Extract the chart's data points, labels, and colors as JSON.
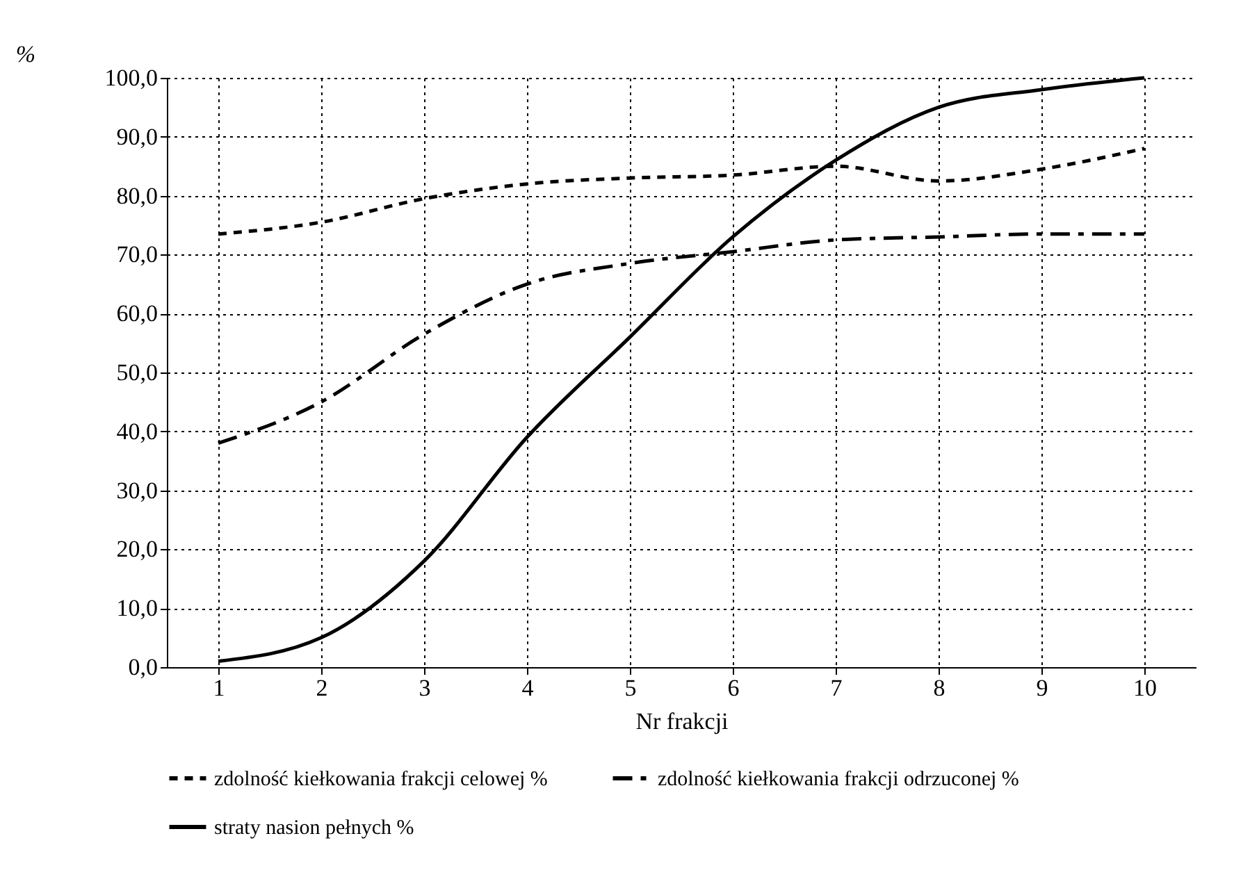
{
  "chart_data": {
    "type": "line",
    "xlabel": "Nr frakcji",
    "ylabel": "%",
    "categories": [
      "1",
      "2",
      "3",
      "4",
      "5",
      "6",
      "7",
      "8",
      "9",
      "10"
    ],
    "series": [
      {
        "name": "zdolność kiełkowania frakcji celowej %",
        "color": "#000000",
        "line_style": "dotted",
        "values": [
          73.5,
          75.5,
          79.5,
          82,
          83,
          83.5,
          85,
          82.5,
          84.5,
          88
        ]
      },
      {
        "name": "zdolność kiełkowania frakcji odrzuconej %",
        "color": "#000000",
        "line_style": "dashed",
        "values": [
          38,
          45,
          56.5,
          65,
          68.5,
          70.5,
          72.5,
          73,
          73.5,
          73.5
        ]
      },
      {
        "name": "straty nasion pełnych %",
        "color": "#000000",
        "line_style": "solid",
        "values": [
          1,
          5,
          18,
          39,
          56,
          73,
          86,
          95,
          98,
          100
        ]
      }
    ],
    "ylim": [
      0,
      100
    ],
    "yticks": [
      {
        "value": 0,
        "label": "0,0"
      },
      {
        "value": 10,
        "label": "10,0"
      },
      {
        "value": 20,
        "label": "20,0"
      },
      {
        "value": 30,
        "label": "30,0"
      },
      {
        "value": 40,
        "label": "40,0"
      },
      {
        "value": 50,
        "label": "50,0"
      },
      {
        "value": 60,
        "label": "60,0"
      },
      {
        "value": 70,
        "label": "70,0"
      },
      {
        "value": 80,
        "label": "80,0"
      },
      {
        "value": 90,
        "label": "90,0"
      },
      {
        "value": 100,
        "label": "100,0"
      }
    ],
    "grid": true,
    "legend": "bottom",
    "marker": "none"
  }
}
